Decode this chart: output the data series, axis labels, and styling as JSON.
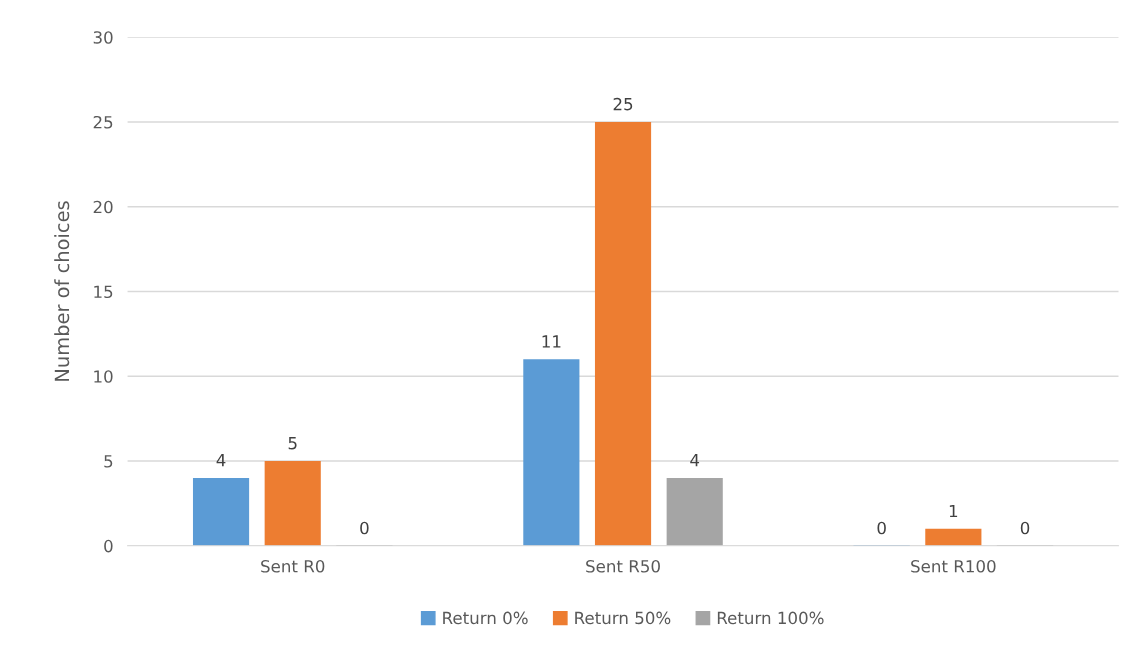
{
  "chart_data": {
    "type": "bar",
    "ylabel": "Number of choices",
    "categories": [
      "Sent R0",
      "Sent R50",
      "Sent R100"
    ],
    "series": [
      {
        "name": "Return 0%",
        "color": "#5b9bd5",
        "values": [
          4,
          11,
          0
        ]
      },
      {
        "name": "Return 50%",
        "color": "#ed7d31",
        "values": [
          5,
          25,
          1
        ]
      },
      {
        "name": "Return 100%",
        "color": "#a5a5a5",
        "values": [
          0,
          4,
          0
        ]
      }
    ],
    "ylim": [
      0,
      30
    ],
    "yticks": [
      0,
      5,
      10,
      15,
      20,
      25,
      30
    ],
    "grid": "y",
    "legend": "bottom",
    "data_labels": true
  }
}
